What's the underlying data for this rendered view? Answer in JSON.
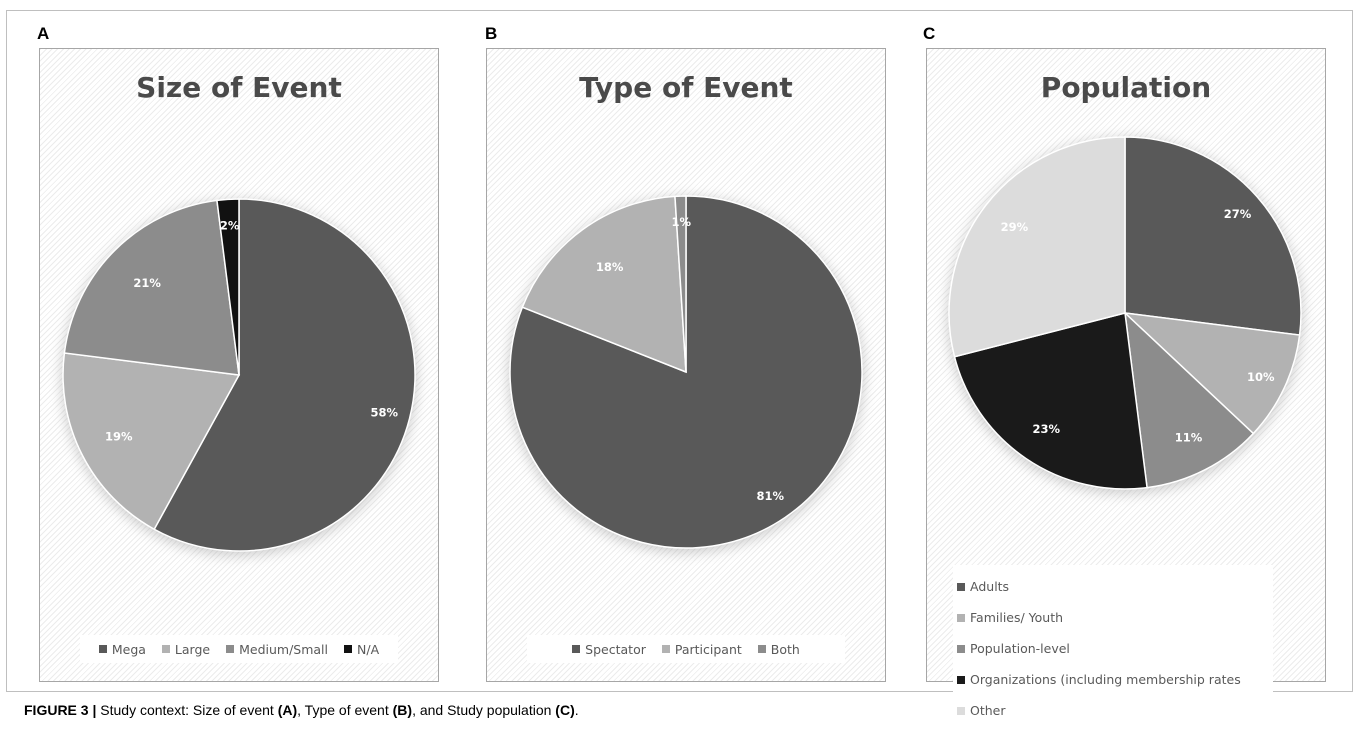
{
  "chart_data": [
    {
      "panel": "A",
      "type": "pie",
      "title": "Size of Event",
      "categories": [
        "Mega",
        "Large",
        "Medium/Small",
        "N/A"
      ],
      "values": [
        58,
        19,
        21,
        2
      ],
      "labels": [
        "58%",
        "19%",
        "21%",
        "2%"
      ],
      "colors": [
        "#595959",
        "#b2b2b2",
        "#8c8c8c",
        "#111111"
      ],
      "label_colors": [
        "#ffffff",
        "#ffffff",
        "#ffffff",
        "#ffffff"
      ],
      "legend_position": "bottom"
    },
    {
      "panel": "B",
      "type": "pie",
      "title": "Type of Event",
      "categories": [
        "Spectator",
        "Participant",
        "Both"
      ],
      "values": [
        81,
        18,
        1
      ],
      "labels": [
        "81%",
        "18%",
        "1%"
      ],
      "colors": [
        "#595959",
        "#b2b2b2",
        "#8c8c8c"
      ],
      "label_colors": [
        "#ffffff",
        "#ffffff",
        "#ffffff"
      ],
      "legend_position": "bottom"
    },
    {
      "panel": "C",
      "type": "pie",
      "title": "Population",
      "categories": [
        "Adults",
        "Families/ Youth",
        "Population-level",
        "Organizations (including membership rates",
        "Other"
      ],
      "values": [
        27,
        10,
        11,
        23,
        29
      ],
      "labels": [
        "27%",
        "10%",
        "11%",
        "23%",
        "29%"
      ],
      "colors": [
        "#595959",
        "#b2b2b2",
        "#8c8c8c",
        "#1a1a1a",
        "#dcdcdc"
      ],
      "label_colors": [
        "#ffffff",
        "#ffffff",
        "#ffffff",
        "#ffffff",
        "#ffffff"
      ],
      "legend_position": "bottom"
    }
  ],
  "panel_letters": {
    "a": "A",
    "b": "B",
    "c": "C"
  },
  "caption": {
    "label": "FIGURE 3 |",
    "text_1": " Study context: Size of event ",
    "ref_a": "(A)",
    "text_2": ", Type of event ",
    "ref_b": "(B)",
    "text_3": ", and Study population ",
    "ref_c": "(C)",
    "text_4": "."
  }
}
